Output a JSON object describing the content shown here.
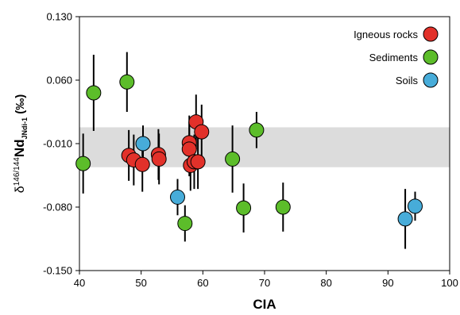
{
  "chart_data": {
    "type": "scatter",
    "xlabel": "CIA",
    "ylabel": {
      "delta": "δ",
      "mass": "146/144",
      "element": "Nd",
      "subscript": "JNdi-1",
      "unit": "(‰)"
    },
    "xlim": [
      40,
      100
    ],
    "ylim": [
      -0.15,
      0.13
    ],
    "xticks": [
      "40",
      "50",
      "60",
      "70",
      "80",
      "90",
      "100"
    ],
    "yticks": [
      "0.130",
      "0.060",
      "-0.010",
      "-0.080",
      "-0.150"
    ],
    "xtick_values": [
      40,
      50,
      60,
      70,
      80,
      90,
      100
    ],
    "ytick_values": [
      0.13,
      0.06,
      -0.01,
      -0.08,
      -0.15
    ],
    "band": {
      "y_low": -0.036,
      "y_high": 0.008,
      "color": "#dcdcdc"
    },
    "legend": {
      "position": "top-right"
    },
    "series": [
      {
        "name": "Igneous rocks",
        "color": "#e2312a",
        "points": [
          {
            "x": 48.0,
            "y": -0.023,
            "err": 0.028
          },
          {
            "x": 48.8,
            "y": -0.028,
            "err": 0.028
          },
          {
            "x": 50.2,
            "y": -0.033,
            "err": 0.03
          },
          {
            "x": 52.8,
            "y": -0.022,
            "err": 0.028
          },
          {
            "x": 52.9,
            "y": -0.027,
            "err": 0.028
          },
          {
            "x": 57.8,
            "y": -0.009,
            "err": 0.03
          },
          {
            "x": 57.8,
            "y": -0.016,
            "err": 0.03
          },
          {
            "x": 58.0,
            "y": -0.034,
            "err": 0.028
          },
          {
            "x": 58.6,
            "y": -0.03,
            "err": 0.03
          },
          {
            "x": 58.9,
            "y": 0.014,
            "err": 0.03
          },
          {
            "x": 59.2,
            "y": -0.03,
            "err": 0.03
          },
          {
            "x": 59.8,
            "y": 0.003,
            "err": 0.03
          }
        ]
      },
      {
        "name": "Sediments",
        "color": "#5cbd2a",
        "points": [
          {
            "x": 40.6,
            "y": -0.032,
            "err": 0.033
          },
          {
            "x": 42.3,
            "y": 0.046,
            "err": 0.042
          },
          {
            "x": 47.7,
            "y": 0.058,
            "err": 0.033
          },
          {
            "x": 57.1,
            "y": -0.098,
            "err": 0.02
          },
          {
            "x": 64.8,
            "y": -0.027,
            "err": 0.037
          },
          {
            "x": 66.6,
            "y": -0.081,
            "err": 0.027
          },
          {
            "x": 68.7,
            "y": 0.005,
            "err": 0.02
          },
          {
            "x": 73.0,
            "y": -0.08,
            "err": 0.027
          }
        ]
      },
      {
        "name": "Soils",
        "color": "#47acd9",
        "points": [
          {
            "x": 50.3,
            "y": -0.01,
            "err": 0.02
          },
          {
            "x": 55.9,
            "y": -0.069,
            "err": 0.02
          },
          {
            "x": 92.8,
            "y": -0.093,
            "err": 0.033
          },
          {
            "x": 94.4,
            "y": -0.079,
            "err": 0.016
          }
        ]
      }
    ]
  }
}
